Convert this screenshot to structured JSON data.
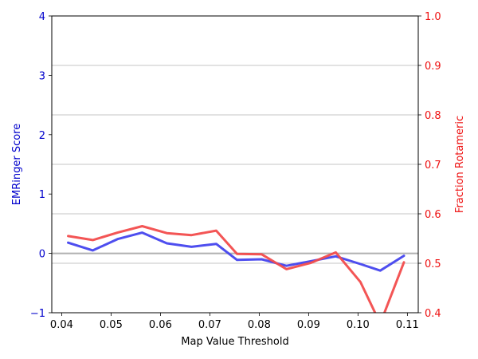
{
  "chart_data": {
    "type": "line",
    "xlabel": "Map Value Threshold",
    "ylabel_left": "EMRinger Score",
    "ylabel_right": "Fraction Rotameric",
    "xlim": [
      0.038,
      0.1122
    ],
    "ylim_left": [
      -1,
      4
    ],
    "ylim_right": [
      0.4,
      1.0
    ],
    "x_ticks": [
      0.04,
      0.05,
      0.06,
      0.07,
      0.08,
      0.09,
      0.1,
      0.11
    ],
    "x_tick_labels": [
      "0.04",
      "0.05",
      "0.06",
      "0.07",
      "0.08",
      "0.09",
      "0.10",
      "0.11"
    ],
    "y_left_ticks": [
      -1,
      0,
      1,
      2,
      3,
      4
    ],
    "y_left_tick_labels": [
      "−1",
      "0",
      "1",
      "2",
      "3",
      "4"
    ],
    "y_right_ticks": [
      0.4,
      0.5,
      0.6,
      0.7,
      0.8,
      0.9,
      1.0
    ],
    "y_right_tick_labels": [
      "0.4",
      "0.5",
      "0.6",
      "0.7",
      "0.8",
      "0.9",
      "1.0"
    ],
    "hline_left_zero": 0,
    "grid": "right axis horizontal",
    "x": [
      0.0413,
      0.0463,
      0.0513,
      0.0563,
      0.0613,
      0.0663,
      0.0713,
      0.0755,
      0.0805,
      0.0855,
      0.0905,
      0.0955,
      0.1005,
      0.1045,
      0.1093
    ],
    "series": [
      {
        "axis": "left",
        "color": "#4444ee",
        "values": [
          0.18,
          0.05,
          0.24,
          0.35,
          0.17,
          0.11,
          0.16,
          -0.11,
          -0.1,
          -0.21,
          -0.13,
          -0.05,
          -0.18,
          -0.29,
          -0.04
        ]
      },
      {
        "axis": "right",
        "color": "#f24c4c",
        "values": [
          0.555,
          0.547,
          0.562,
          0.575,
          0.561,
          0.557,
          0.566,
          0.519,
          0.518,
          0.488,
          0.501,
          0.522,
          0.462,
          0.378,
          0.502
        ]
      }
    ]
  },
  "colors": {
    "left_axis": "#0000cc",
    "right_axis": "#ee1111"
  }
}
